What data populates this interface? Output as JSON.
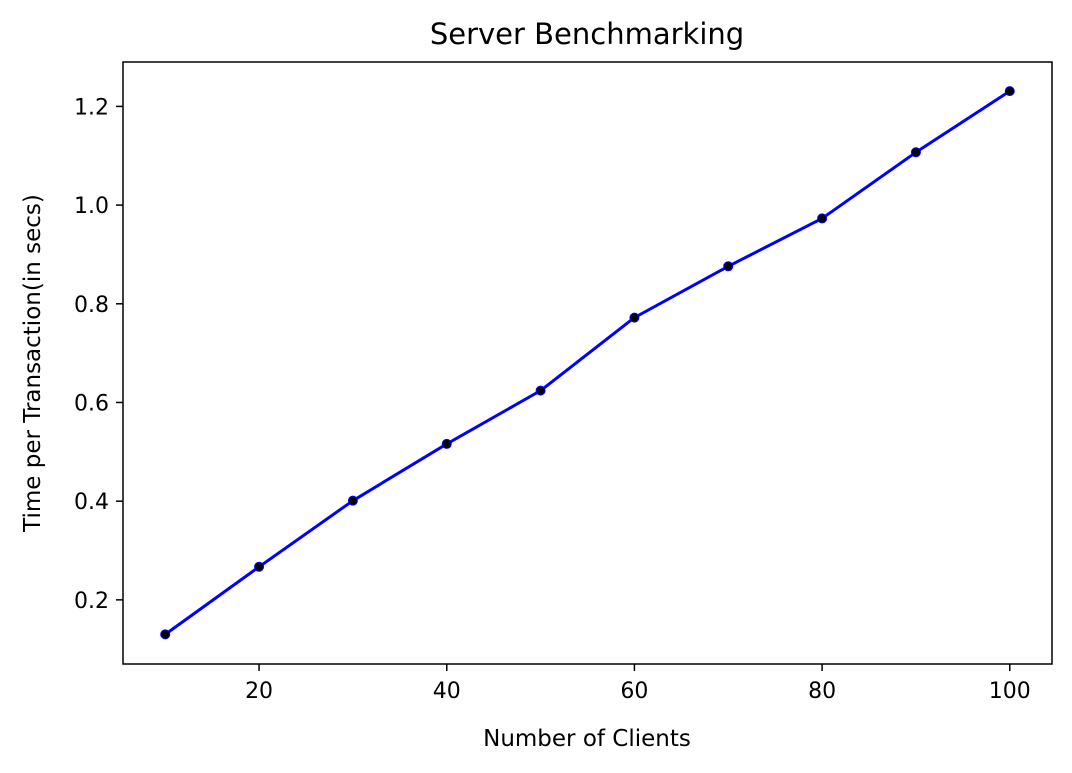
{
  "chart_data": {
    "type": "line",
    "title": "Server Benchmarking",
    "xlabel": "Number of Clients",
    "ylabel": "Time per Transaction(in secs)",
    "xlim": [
      5.5,
      104.5
    ],
    "ylim": [
      0.07,
      1.29
    ],
    "xticks": [
      20,
      40,
      60,
      80,
      100
    ],
    "yticks": [
      0.2,
      0.4,
      0.6,
      0.8,
      1.0,
      1.2
    ],
    "x": [
      10,
      20,
      30,
      40,
      50,
      60,
      70,
      80,
      90,
      100
    ],
    "series": [
      {
        "values": [
          0.13,
          0.267,
          0.401,
          0.516,
          0.624,
          0.772,
          0.876,
          0.973,
          1.107,
          1.231
        ],
        "line_color": "#0000ff",
        "marker_color": "#000000"
      }
    ],
    "grid": false,
    "legend": "none"
  }
}
